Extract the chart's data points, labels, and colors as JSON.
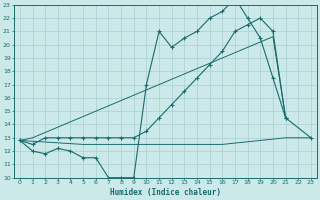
{
  "xlabel": "Humidex (Indice chaleur)",
  "xlim": [
    -0.5,
    23.5
  ],
  "ylim": [
    10,
    23
  ],
  "yticks": [
    10,
    11,
    12,
    13,
    14,
    15,
    16,
    17,
    18,
    19,
    20,
    21,
    22,
    23
  ],
  "xticks": [
    0,
    1,
    2,
    3,
    4,
    5,
    6,
    7,
    8,
    9,
    10,
    11,
    12,
    13,
    14,
    15,
    16,
    17,
    18,
    19,
    20,
    21,
    22,
    23
  ],
  "bg_color": "#cce9ea",
  "grid_color": "#aacfd2",
  "line_color": "#1a6b6b",
  "line1_x": [
    0,
    1,
    2,
    3,
    4,
    5,
    6,
    7,
    8,
    9,
    10,
    11,
    12,
    13,
    14,
    15,
    16,
    17,
    18,
    19,
    20,
    21,
    23
  ],
  "line1_y": [
    12.8,
    12.0,
    11.8,
    12.2,
    12.0,
    11.5,
    11.5,
    10.0,
    10.0,
    10.0,
    17.0,
    21.0,
    19.8,
    20.5,
    21.0,
    22.0,
    22.5,
    23.5,
    22.0,
    20.5,
    17.5,
    14.5,
    13.0
  ],
  "line2_x": [
    0,
    1,
    2,
    3,
    4,
    5,
    6,
    7,
    8,
    9,
    10,
    11,
    12,
    13,
    14,
    15,
    16,
    17,
    18,
    19,
    20,
    21
  ],
  "line2_y": [
    12.8,
    12.5,
    13.0,
    13.0,
    13.0,
    13.0,
    13.0,
    13.0,
    13.0,
    13.0,
    13.5,
    14.5,
    15.5,
    16.5,
    17.5,
    18.5,
    19.5,
    21.0,
    21.5,
    22.0,
    21.0,
    14.5
  ],
  "line3_x": [
    0,
    5,
    9,
    10,
    11,
    12,
    13,
    14,
    15,
    16,
    17,
    18,
    19,
    20,
    21,
    22,
    23
  ],
  "line3_y": [
    12.8,
    12.5,
    12.5,
    12.5,
    12.5,
    12.5,
    12.5,
    12.5,
    12.5,
    12.5,
    12.6,
    12.7,
    12.8,
    12.9,
    13.0,
    13.0,
    13.0
  ],
  "line4_x": [
    0,
    1,
    2,
    3,
    4,
    5,
    6,
    7,
    8,
    9,
    10,
    11,
    12,
    13,
    14,
    15,
    16,
    17,
    18,
    19,
    20,
    21
  ],
  "line4_y": [
    12.8,
    13.0,
    13.4,
    13.8,
    14.2,
    14.6,
    15.0,
    15.4,
    15.8,
    16.2,
    16.6,
    17.0,
    17.4,
    17.8,
    18.2,
    18.6,
    19.0,
    19.4,
    19.8,
    20.2,
    20.6,
    14.5
  ]
}
